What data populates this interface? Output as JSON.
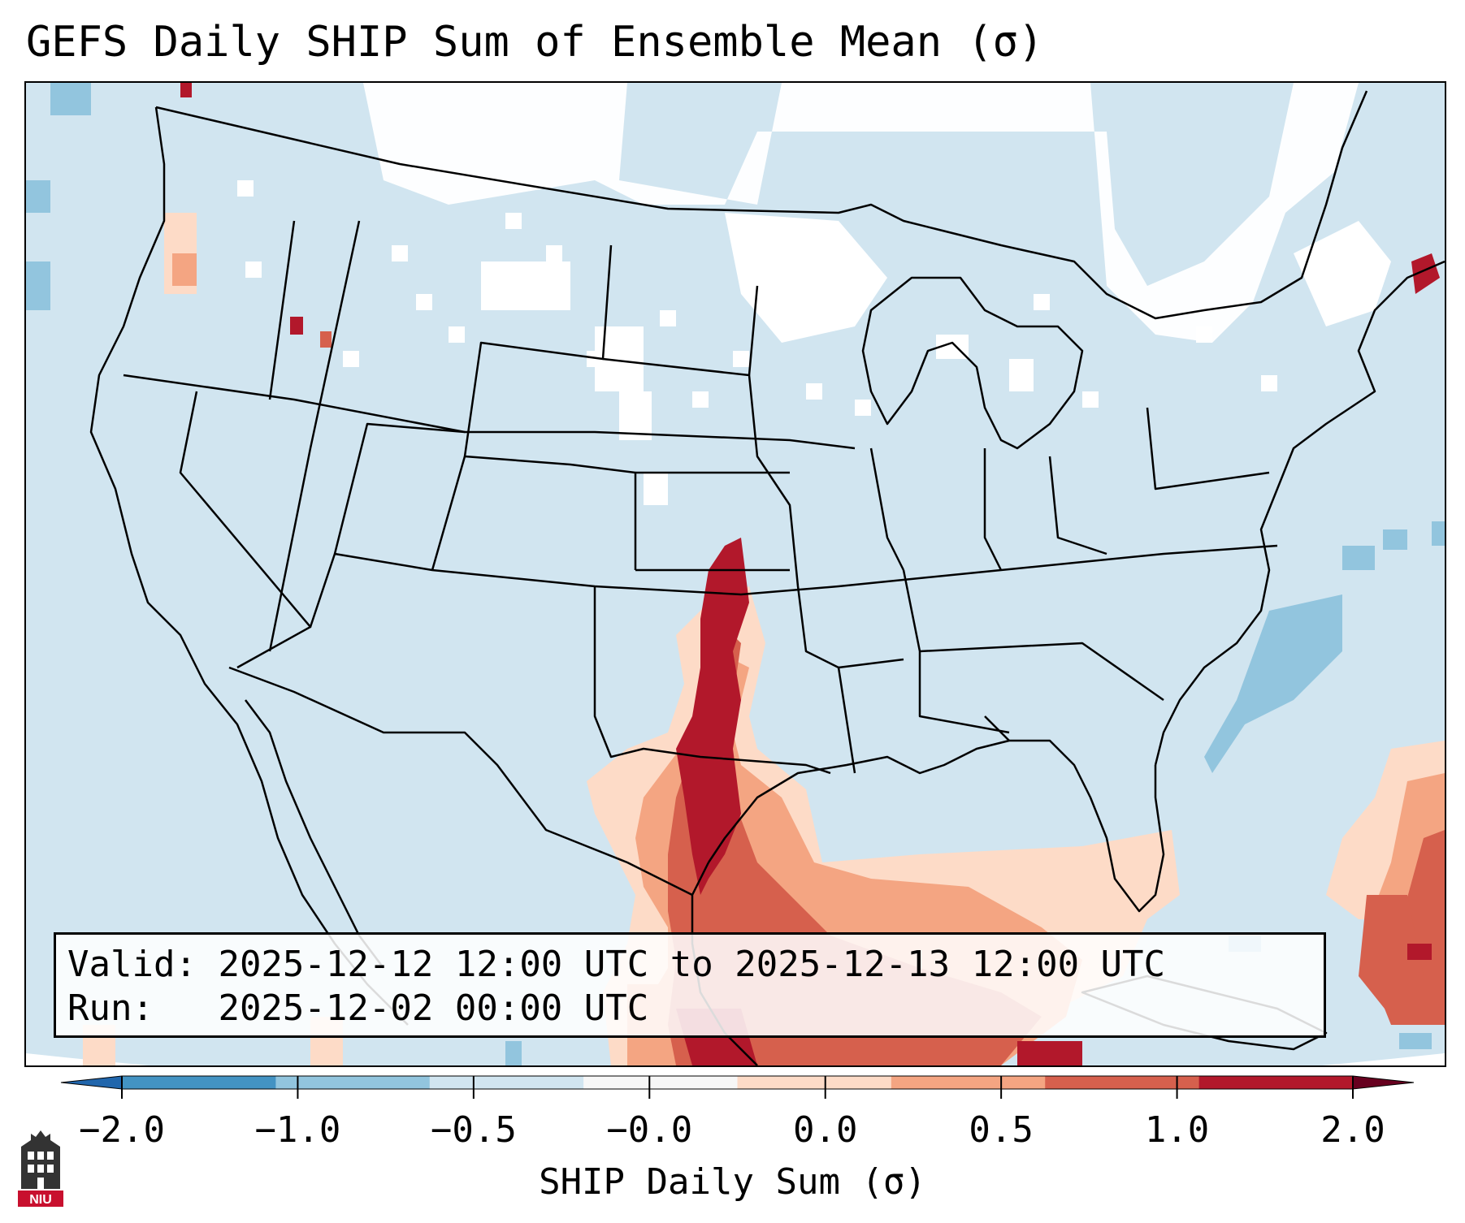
{
  "title": "GEFS Daily SHIP Sum of Ensemble Mean (σ)",
  "info": {
    "valid_label": "Valid:",
    "valid_value": "2025-12-12 12:00 UTC to 2025-12-13 12:00 UTC",
    "run_label": "Run:",
    "run_value": "2025-12-02 00:00 UTC"
  },
  "colorbar": {
    "label": "SHIP Daily Sum (σ)",
    "ticks": [
      "−2.0",
      "−1.0",
      "−0.5",
      "−0.0",
      "0.0",
      "0.5",
      "1.0",
      "2.0"
    ],
    "colors": [
      "#4393c3",
      "#92c5de",
      "#d1e5f0",
      "#f7f7f7",
      "#fddbc7",
      "#f4a582",
      "#d6604d",
      "#b2182b"
    ],
    "extend": "both"
  },
  "map": {
    "background_color": "#d1e5f0",
    "no_data_color": "#ffffff",
    "outline_color": "#000000"
  },
  "logo": {
    "text": "NIU",
    "color": "#c8102e"
  }
}
